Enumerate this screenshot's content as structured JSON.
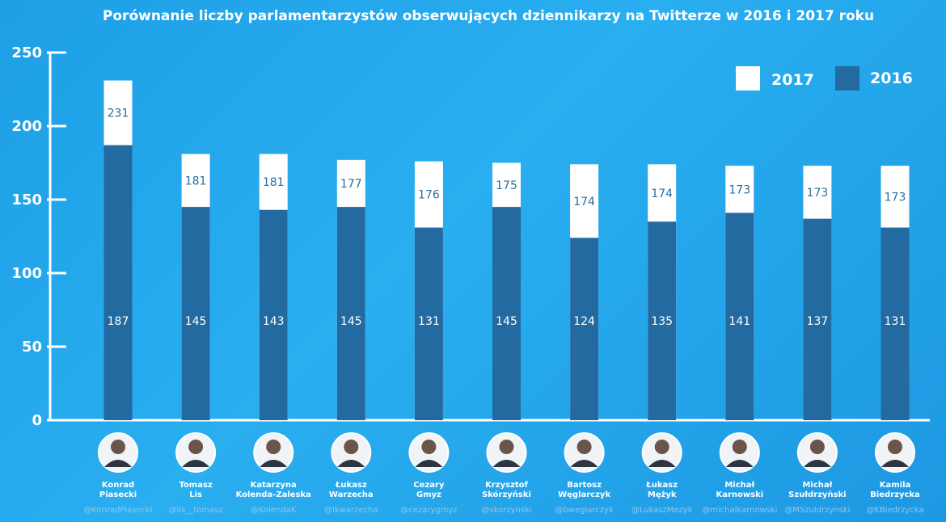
{
  "chart_data": {
    "type": "bar",
    "stacked": "overlay",
    "title": "Porównanie liczby parlamentarzystów obserwujących dziennikarzy na Twitterze w 2016 i 2017 roku",
    "ylim": [
      0,
      250
    ],
    "yticks": [
      0,
      50,
      100,
      150,
      200,
      250
    ],
    "legend": {
      "position": "top-right",
      "entries": [
        "2017",
        "2016"
      ]
    },
    "colors": {
      "2016": "#236aa0",
      "2017": "#ffffff",
      "axis": "#ffffff"
    },
    "categories": [
      {
        "name": [
          "Konrad",
          "Piasecki"
        ],
        "handle": "@KonradPiasecki"
      },
      {
        "name": [
          "Tomasz",
          "Lis"
        ],
        "handle": "@lis__tomasz"
      },
      {
        "name": [
          "Katarzyna",
          "Kolenda-Zaleska"
        ],
        "handle": "@KolendaK"
      },
      {
        "name": [
          "Łukasz",
          "Warzecha"
        ],
        "handle": "@lkwarzecha"
      },
      {
        "name": [
          "Cezary",
          "Gmyz"
        ],
        "handle": "@cezarygmyz"
      },
      {
        "name": [
          "Krzysztof",
          "Skórzyński"
        ],
        "handle": "@skorzynski"
      },
      {
        "name": [
          "Bartosz",
          "Węglarczyk"
        ],
        "handle": "@bweglarczyk"
      },
      {
        "name": [
          "Łukasz",
          "Mężyk"
        ],
        "handle": "@LukaszMezyk"
      },
      {
        "name": [
          "Michał",
          "Karnowski"
        ],
        "handle": "@michalkarnowski"
      },
      {
        "name": [
          "Michał",
          "Szułdrzyński"
        ],
        "handle": "@MSzuldrzynski"
      },
      {
        "name": [
          "Kamila",
          "Biedrzycka"
        ],
        "handle": "@KBiedrzycka"
      }
    ],
    "series": [
      {
        "name": "2016",
        "values": [
          187,
          145,
          143,
          145,
          131,
          145,
          124,
          135,
          141,
          137,
          131
        ]
      },
      {
        "name": "2017",
        "values": [
          231,
          181,
          181,
          177,
          176,
          175,
          174,
          174,
          173,
          173,
          173
        ]
      }
    ]
  }
}
